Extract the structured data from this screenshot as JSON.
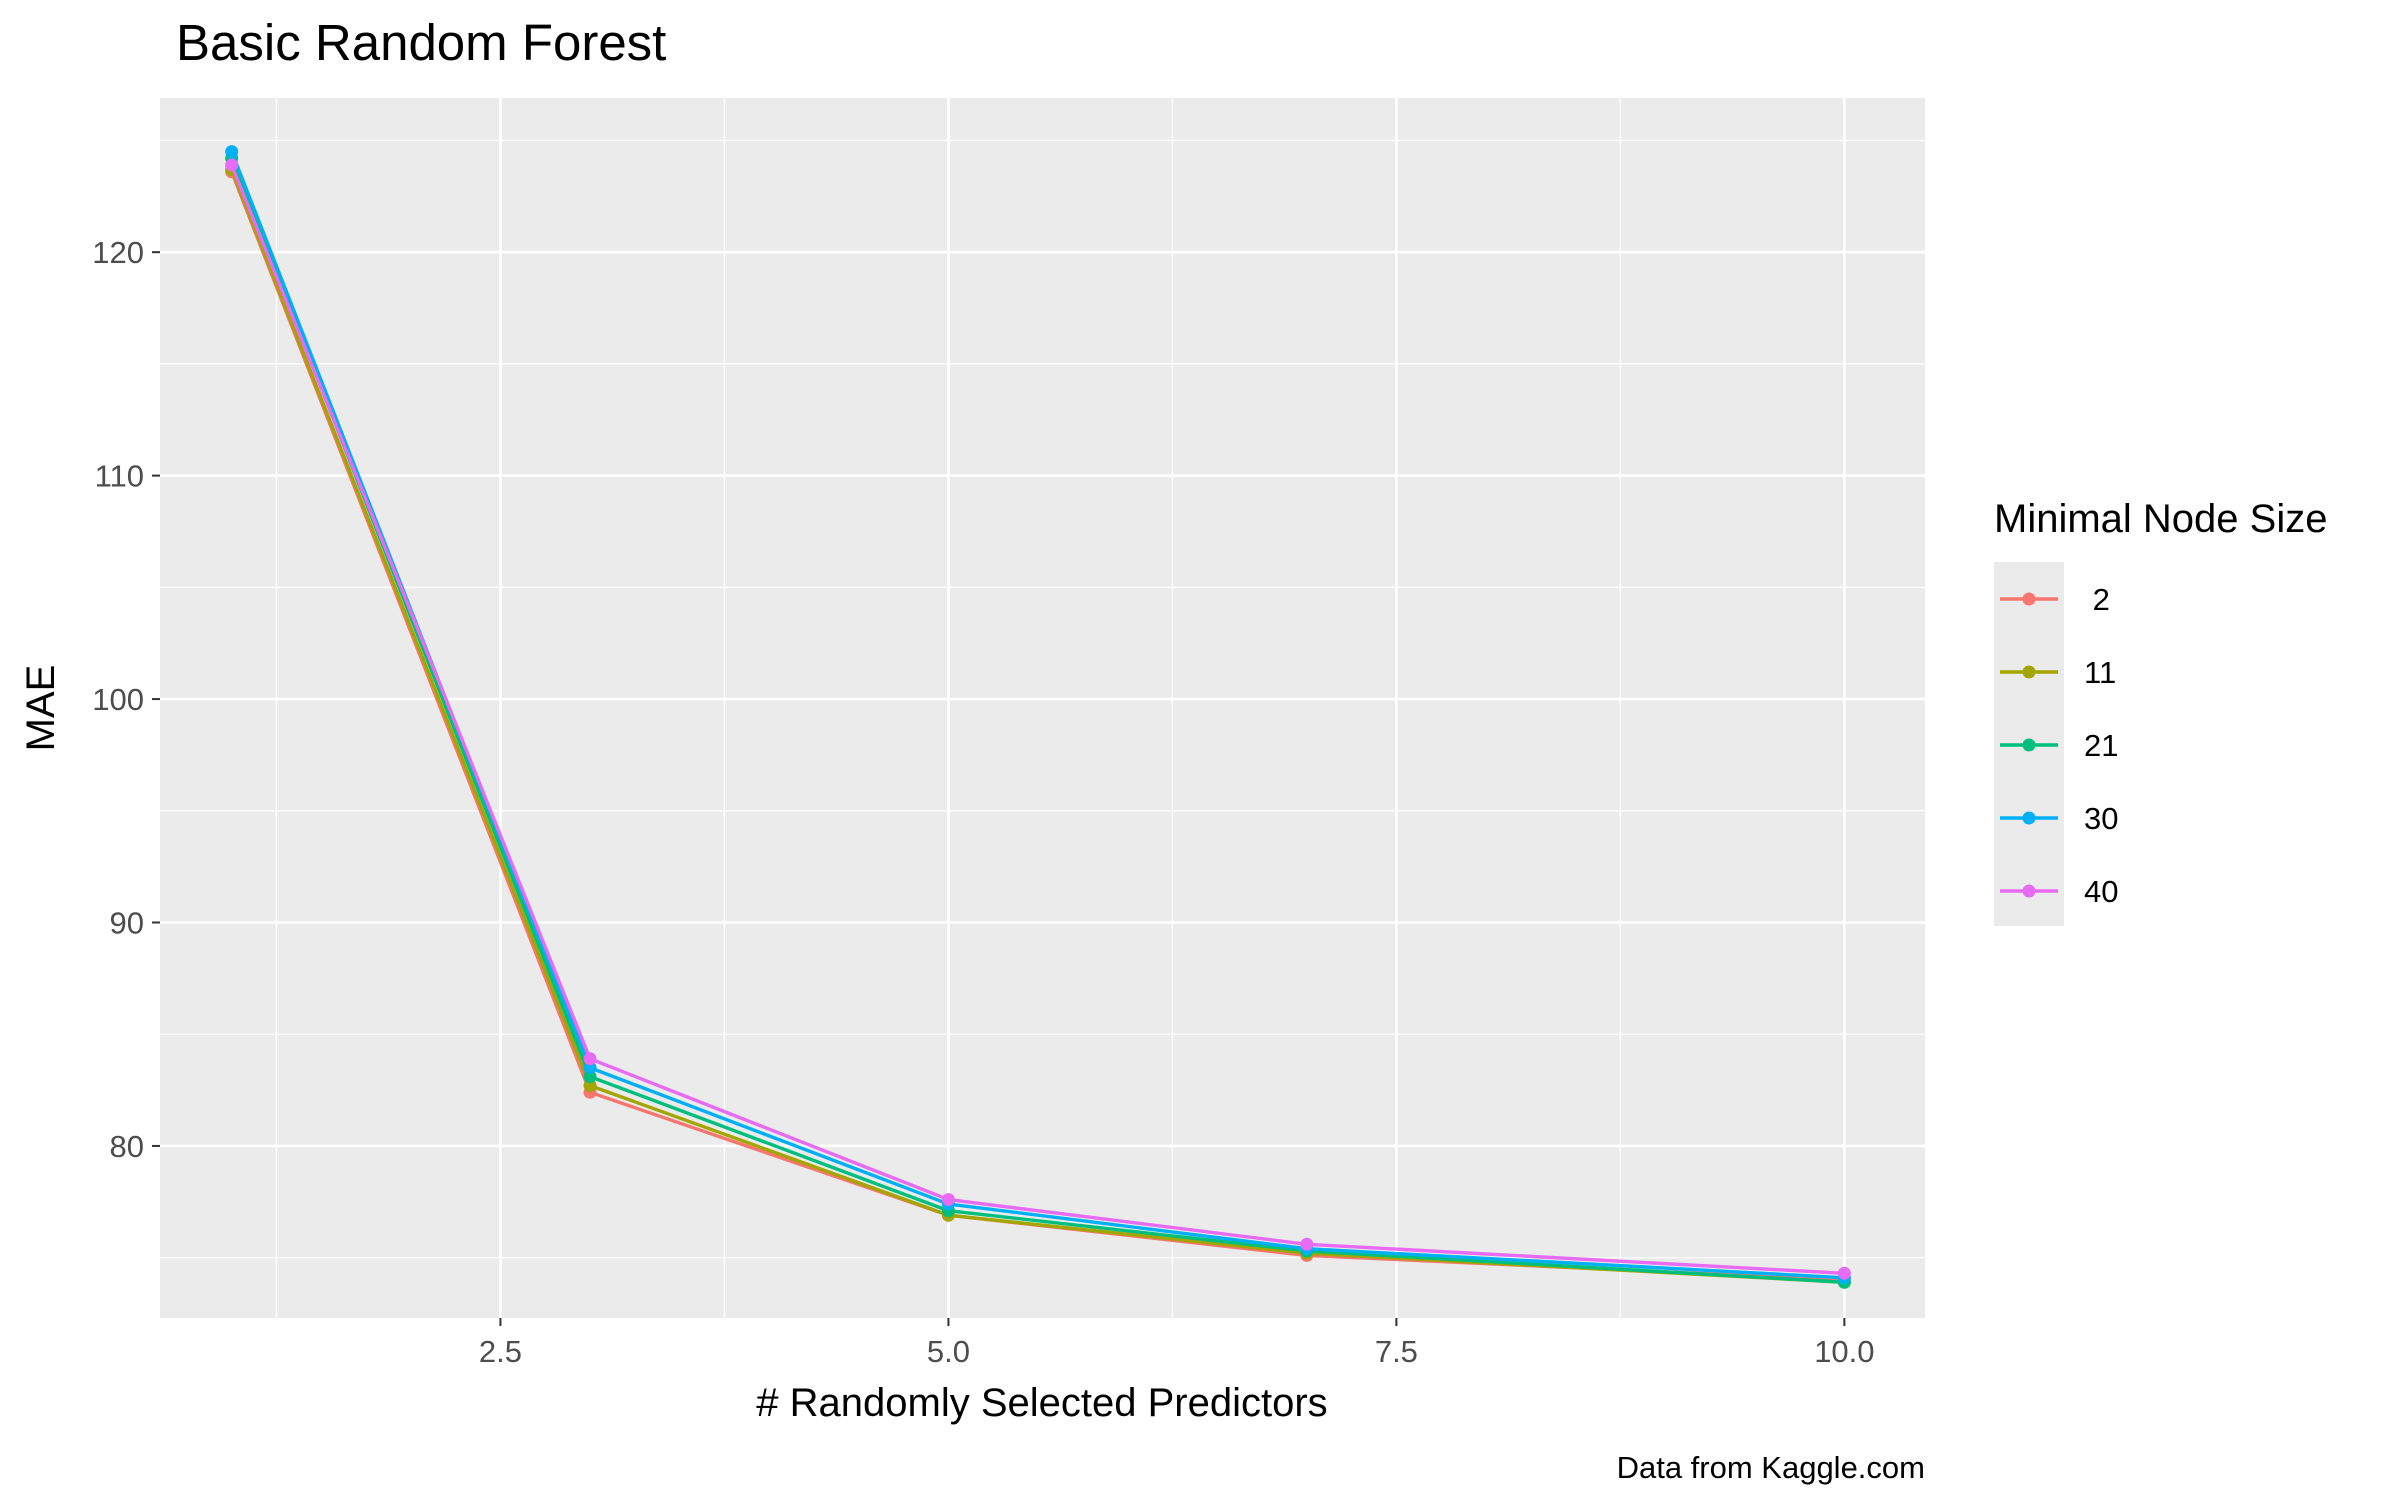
{
  "chart_data": {
    "type": "line",
    "title": "Basic Random Forest",
    "xlabel": "# Randomly Selected Predictors",
    "ylabel": "MAE",
    "caption": "Data from Kaggle.com",
    "legend_title": "Minimal Node Size",
    "legend_position": "right",
    "grid": true,
    "xlim": [
      0.6,
      10.45
    ],
    "ylim": [
      72.3,
      126.9
    ],
    "x_ticks": [
      2.5,
      5.0,
      7.5,
      10.0
    ],
    "x_tick_labels": [
      "2.5",
      "5.0",
      "7.5",
      "10.0"
    ],
    "y_ticks": [
      80,
      90,
      100,
      110,
      120
    ],
    "y_tick_labels": [
      "80",
      "90",
      "100",
      "110",
      "120"
    ],
    "x": [
      1,
      3,
      5,
      7,
      10
    ],
    "series": [
      {
        "name": " 2",
        "color": "#F8766D",
        "values": [
          123.6,
          82.4,
          76.9,
          75.1,
          74.0
        ]
      },
      {
        "name": "11",
        "color": "#A3A500",
        "values": [
          123.7,
          82.7,
          76.9,
          75.2,
          73.9
        ]
      },
      {
        "name": "21",
        "color": "#00BF7D",
        "values": [
          124.2,
          83.1,
          77.1,
          75.3,
          73.9
        ]
      },
      {
        "name": "30",
        "color": "#00B0F6",
        "values": [
          124.5,
          83.5,
          77.4,
          75.4,
          74.1
        ]
      },
      {
        "name": "40",
        "color": "#E76BF3",
        "values": [
          123.9,
          83.9,
          77.6,
          75.6,
          74.3
        ]
      }
    ]
  }
}
